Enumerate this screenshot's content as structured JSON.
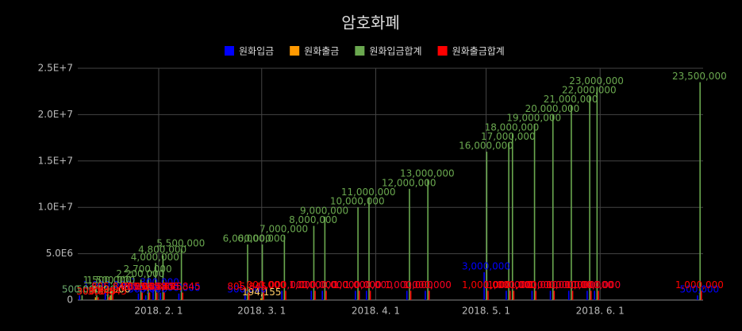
{
  "chart_data": {
    "type": "bar",
    "title": "암호화폐",
    "x": [
      "2018-01-11",
      "2018-01-15",
      "2018-01-18",
      "2018-01-19",
      "2018-01-27",
      "2018-01-29",
      "2018-01-31",
      "2018-02-02",
      "2018-02-07",
      "2018-02-25",
      "2018-03-01",
      "2018-03-07",
      "2018-03-15",
      "2018-03-18",
      "2018-03-27",
      "2018-03-30",
      "2018-04-10",
      "2018-04-15",
      "2018-05-01",
      "2018-05-07",
      "2018-05-08",
      "2018-05-14",
      "2018-05-19",
      "2018-05-24",
      "2018-05-29",
      "2018-05-31",
      "2018-06-28"
    ],
    "series": [
      {
        "name": "원화입금",
        "color": "#0000ff",
        "values": [
          500000,
          null,
          1000000,
          null,
          700000,
          500000,
          1300000,
          800000,
          700000,
          500000,
          null,
          1000000,
          1000000,
          1000000,
          1000000,
          1000000,
          1000000,
          1000000,
          3000000,
          1000000,
          1000000,
          1000000,
          1000000,
          1000000,
          1000000,
          1000000,
          500000
        ],
        "value_labels": [
          "500,000",
          null,
          "1,000,000",
          null,
          "700,000",
          "500,000",
          "1,300,000",
          "800,000",
          "700,000",
          "500,000",
          null,
          "1,000,000",
          "1,000,000",
          "1,000,000",
          "1,000,000",
          "1,000,000",
          "1,000,000",
          "1,000,000",
          "3,000,000",
          "1,000,000",
          "1,000,000",
          "1,000,000",
          "1,000,000",
          "1,000,000",
          "1,000,000",
          "1,000,000",
          "500,000"
        ]
      },
      {
        "name": "원화출금",
        "color": "#ff9900",
        "values": [
          null,
          306845,
          null,
          499000,
          null,
          null,
          null,
          null,
          null,
          null,
          194155,
          null,
          null,
          null,
          null,
          null,
          null,
          null,
          null,
          null,
          null,
          null,
          null,
          null,
          null,
          null,
          null
        ],
        "value_labels": [
          null,
          "306,845",
          null,
          "499,000",
          null,
          null,
          null,
          null,
          null,
          null,
          "194,155",
          null,
          null,
          null,
          null,
          null,
          null,
          null,
          null,
          null,
          null,
          null,
          null,
          null,
          null,
          null,
          null
        ]
      },
      {
        "name": "원화입금합계",
        "color": "#6aa84f",
        "values": [
          500000,
          500000,
          1500000,
          1500000,
          2200000,
          2700000,
          4000000,
          4800000,
          5500000,
          6000000,
          6000000,
          7000000,
          8000000,
          9000000,
          10000000,
          11000000,
          12000000,
          13000000,
          16000000,
          17000000,
          18000000,
          19000000,
          20000000,
          21000000,
          22000000,
          23000000,
          23500000
        ],
        "value_labels": [
          "500,000",
          "500,000",
          "1,500,000",
          "1,500,000",
          "2,200,000",
          "2,700,000",
          "4,000,000",
          "4,800,000",
          "5,500,000",
          "6,000,000",
          "6,000,000",
          "7,000,000",
          "8,000,000",
          "9,000,000",
          "10,000,000",
          "11,000,000",
          "12,000,000",
          "13,000,000",
          "16,000,000",
          "17,000,000",
          "18,000,000",
          "19,000,000",
          "20,000,000",
          "21,000,000",
          "22,000,000",
          "23,000,000",
          "23,500,000"
        ]
      },
      {
        "name": "원화출금합계",
        "color": "#ff0000",
        "values": [
          null,
          306845,
          306845,
          805845,
          805845,
          805845,
          805845,
          805845,
          805845,
          805845,
          1000000,
          1000000,
          1000000,
          1000000,
          1000000,
          1000000,
          1000000,
          1000000,
          1000000,
          1000000,
          1000000,
          1000000,
          1000000,
          1000000,
          1000000,
          1000000,
          1000000
        ],
        "value_labels": [
          null,
          "306,845",
          "306,845",
          "805,845",
          "805,845",
          "805,845",
          "805,845",
          "805,845",
          "805,845",
          "805,845",
          "1,000,000",
          "1,000,000",
          "1,000,000",
          "1,000,000",
          "1,000,000",
          "1,000,000",
          "1,000,000",
          "1,000,000",
          "1,000,000",
          "1,000,000",
          "1,000,000",
          "1,000,000",
          "1,000,000",
          "1,000,000",
          "1,000,000",
          "1,000,000",
          "1,000,000"
        ]
      }
    ],
    "xlim": [
      "2018-01-10",
      "2018-06-29"
    ],
    "xticks": [
      {
        "value": "2018-02-01",
        "label": "2018. 2. 1"
      },
      {
        "value": "2018-03-01",
        "label": "2018. 3. 1"
      },
      {
        "value": "2018-04-01",
        "label": "2018. 4. 1"
      },
      {
        "value": "2018-05-01",
        "label": "2018. 5. 1"
      },
      {
        "value": "2018-06-01",
        "label": "2018. 6. 1"
      }
    ],
    "ylim": [
      0,
      25000000
    ],
    "yticks": [
      0,
      {
        "value": 5000000,
        "label": "5.0E6"
      },
      {
        "value": 10000000,
        "label": "1.0E+7"
      },
      {
        "value": 15000000,
        "label": "1.5E+7"
      },
      {
        "value": 20000000,
        "label": "2.0E+7"
      },
      {
        "value": 25000000,
        "label": "2.5E+7"
      }
    ],
    "grid": true,
    "legend": "top"
  }
}
